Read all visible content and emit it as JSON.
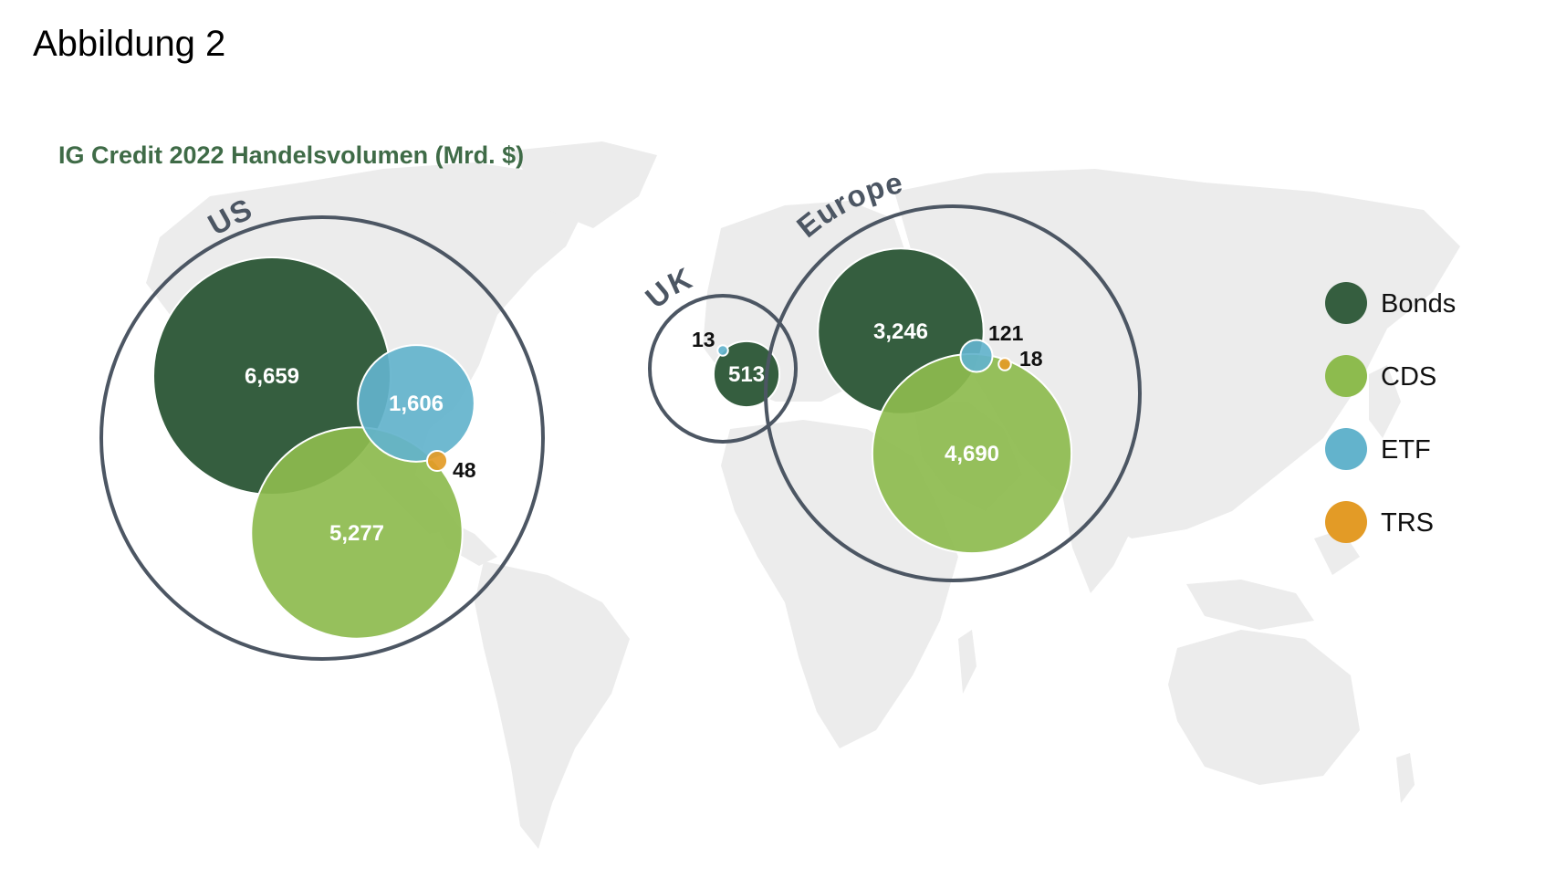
{
  "figure_label": "Abbildung 2",
  "colors": {
    "Bonds": "#355e3f",
    "CDS": "#8dbb4e",
    "ETF": "#63b3cc",
    "TRS": "#e39b26",
    "title": "#3f6b47",
    "region_ring": "#4c5663"
  },
  "chart_data": {
    "type": "bubble",
    "title": "IG Credit 2022 Handelsvolumen (Mrd. $)",
    "legend": {
      "position": "right",
      "entries": [
        "Bonds",
        "CDS",
        "ETF",
        "TRS"
      ]
    },
    "regions": [
      {
        "name": "US",
        "series": [
          {
            "name": "Bonds",
            "value": 6659,
            "label": "6,659"
          },
          {
            "name": "CDS",
            "value": 5277,
            "label": "5,277"
          },
          {
            "name": "ETF",
            "value": 1606,
            "label": "1,606"
          },
          {
            "name": "TRS",
            "value": 48,
            "label": "48"
          }
        ]
      },
      {
        "name": "UK",
        "series": [
          {
            "name": "Bonds",
            "value": 513,
            "label": "513"
          },
          {
            "name": "ETF",
            "value": 13,
            "label": "13"
          }
        ]
      },
      {
        "name": "Europe",
        "series": [
          {
            "name": "Bonds",
            "value": 3246,
            "label": "3,246"
          },
          {
            "name": "CDS",
            "value": 4690,
            "label": "4,690"
          },
          {
            "name": "ETF",
            "value": 121,
            "label": "121"
          },
          {
            "name": "TRS",
            "value": 18,
            "label": "18"
          }
        ]
      }
    ]
  }
}
